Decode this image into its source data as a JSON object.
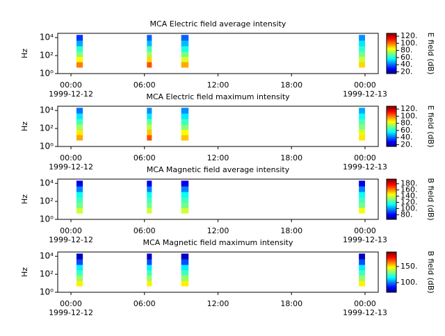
{
  "chart_data": [
    {
      "type": "spectrogram",
      "title": "MCA  Electric field average intensity",
      "ylabel": "Hz",
      "yscale": "log",
      "ylim": [
        1,
        30000
      ],
      "yticks": [
        {
          "value": 1,
          "label": "10⁰"
        },
        {
          "value": 100,
          "label": "10²"
        },
        {
          "value": 10000,
          "label": "10⁴"
        }
      ],
      "xlim": [
        -1.08,
        25.08
      ],
      "xticks": [
        {
          "value": 0,
          "label": "00:00"
        },
        {
          "value": 6,
          "label": "06:00"
        },
        {
          "value": 12,
          "label": "12:00"
        },
        {
          "value": 18,
          "label": "18:00"
        },
        {
          "value": 24,
          "label": "00:00"
        }
      ],
      "xdates": [
        {
          "value": 0,
          "label": "1999-12-12"
        },
        {
          "value": 24,
          "label": "1999-12-13"
        }
      ],
      "bins": [
        5,
        20,
        80,
        300,
        1200,
        5000,
        20000
      ],
      "bursts": [
        {
          "start": 0.45,
          "end": 0.97,
          "values": [
            100,
            85,
            72,
            62,
            48,
            35
          ]
        },
        {
          "start": 6.2,
          "end": 6.6,
          "values": [
            105,
            90,
            75,
            65,
            50,
            40
          ]
        },
        {
          "start": 9.0,
          "end": 9.6,
          "values": [
            95,
            82,
            70,
            60,
            50,
            40
          ]
        },
        {
          "start": 23.5,
          "end": 24.0,
          "values": [
            90,
            80,
            70,
            62,
            55,
            45
          ]
        }
      ],
      "zlim": [
        15,
        128
      ],
      "zlabel": "E field (dB)",
      "zticks": [
        {
          "value": 20,
          "label": "20."
        },
        {
          "value": 40,
          "label": "40."
        },
        {
          "value": 60,
          "label": "60."
        },
        {
          "value": 80,
          "label": "80."
        },
        {
          "value": 100,
          "label": "100."
        },
        {
          "value": 120,
          "label": "120."
        }
      ]
    },
    {
      "type": "spectrogram",
      "title": "MCA  Electric field maximum intensity",
      "ylabel": "Hz",
      "yscale": "log",
      "ylim": [
        1,
        30000
      ],
      "yticks": [
        {
          "value": 1,
          "label": "10⁰"
        },
        {
          "value": 100,
          "label": "10²"
        },
        {
          "value": 10000,
          "label": "10⁴"
        }
      ],
      "xlim": [
        -1.08,
        25.08
      ],
      "xticks": [
        {
          "value": 0,
          "label": "00:00"
        },
        {
          "value": 6,
          "label": "06:00"
        },
        {
          "value": 12,
          "label": "12:00"
        },
        {
          "value": 18,
          "label": "18:00"
        },
        {
          "value": 24,
          "label": "00:00"
        }
      ],
      "xdates": [
        {
          "value": 0,
          "label": "1999-12-12"
        },
        {
          "value": 24,
          "label": "1999-12-13"
        }
      ],
      "bins": [
        5,
        20,
        80,
        300,
        1200,
        5000,
        20000
      ],
      "bursts": [
        {
          "start": 0.45,
          "end": 0.97,
          "values": [
            95,
            88,
            75,
            65,
            55,
            42
          ]
        },
        {
          "start": 6.2,
          "end": 6.6,
          "values": [
            105,
            92,
            78,
            68,
            55,
            45
          ]
        },
        {
          "start": 9.0,
          "end": 9.6,
          "values": [
            92,
            85,
            72,
            64,
            55,
            45
          ]
        },
        {
          "start": 23.5,
          "end": 24.0,
          "values": [
            88,
            82,
            72,
            66,
            58,
            48
          ]
        }
      ],
      "zlim": [
        15,
        128
      ],
      "zlabel": "E field (dB)",
      "zticks": [
        {
          "value": 20,
          "label": "20."
        },
        {
          "value": 40,
          "label": "40."
        },
        {
          "value": 60,
          "label": "60."
        },
        {
          "value": 80,
          "label": "80."
        },
        {
          "value": 100,
          "label": "100."
        },
        {
          "value": 120,
          "label": "120."
        }
      ]
    },
    {
      "type": "spectrogram",
      "title": "MCA  Magnetic field average intensity",
      "ylabel": "Hz",
      "yscale": "log",
      "ylim": [
        1,
        30000
      ],
      "yticks": [
        {
          "value": 1,
          "label": "10⁰"
        },
        {
          "value": 100,
          "label": "10²"
        },
        {
          "value": 10000,
          "label": "10⁴"
        }
      ],
      "xlim": [
        -1.08,
        25.08
      ],
      "xticks": [
        {
          "value": 0,
          "label": "00:00"
        },
        {
          "value": 6,
          "label": "06:00"
        },
        {
          "value": 12,
          "label": "12:00"
        },
        {
          "value": 18,
          "label": "18:00"
        },
        {
          "value": 24,
          "label": "00:00"
        }
      ],
      "xdates": [
        {
          "value": 0,
          "label": "1999-12-12"
        },
        {
          "value": 24,
          "label": "1999-12-13"
        }
      ],
      "bins": [
        5,
        20,
        80,
        300,
        1200,
        5000,
        20000
      ],
      "bursts": [
        {
          "start": 0.45,
          "end": 0.97,
          "values": [
            140,
            128,
            122,
            115,
            98,
            78
          ]
        },
        {
          "start": 6.2,
          "end": 6.6,
          "values": [
            140,
            128,
            122,
            115,
            98,
            78
          ]
        },
        {
          "start": 9.0,
          "end": 9.6,
          "values": [
            140,
            128,
            122,
            115,
            98,
            78
          ]
        },
        {
          "start": 23.5,
          "end": 24.0,
          "values": [
            145,
            128,
            122,
            115,
            98,
            78
          ]
        }
      ],
      "zlim": [
        65,
        195
      ],
      "zlabel": "B field (dB)",
      "zticks": [
        {
          "value": 80,
          "label": "80."
        },
        {
          "value": 100,
          "label": "100."
        },
        {
          "value": 120,
          "label": "120."
        },
        {
          "value": 140,
          "label": "140."
        },
        {
          "value": 160,
          "label": "160."
        },
        {
          "value": 180,
          "label": "180."
        }
      ]
    },
    {
      "type": "spectrogram",
      "title": "MCA  Magnetic field maximum intensity",
      "ylabel": "Hz",
      "yscale": "log",
      "ylim": [
        1,
        30000
      ],
      "yticks": [
        {
          "value": 1,
          "label": "10⁰"
        },
        {
          "value": 100,
          "label": "10²"
        },
        {
          "value": 10000,
          "label": "10⁴"
        }
      ],
      "xlim": [
        -1.08,
        25.08
      ],
      "xticks": [
        {
          "value": 0,
          "label": "00:00"
        },
        {
          "value": 6,
          "label": "06:00"
        },
        {
          "value": 12,
          "label": "12:00"
        },
        {
          "value": 18,
          "label": "18:00"
        },
        {
          "value": 24,
          "label": "00:00"
        }
      ],
      "xdates": [
        {
          "value": 0,
          "label": "1999-12-12"
        },
        {
          "value": 24,
          "label": "1999-12-13"
        }
      ],
      "bins": [
        5,
        20,
        80,
        300,
        1200,
        5000,
        20000
      ],
      "bursts": [
        {
          "start": 0.45,
          "end": 0.97,
          "values": [
            150,
            135,
            125,
            115,
            95,
            78
          ]
        },
        {
          "start": 6.2,
          "end": 6.6,
          "values": [
            150,
            135,
            125,
            115,
            95,
            78
          ]
        },
        {
          "start": 9.0,
          "end": 9.6,
          "values": [
            150,
            135,
            125,
            115,
            95,
            78
          ]
        },
        {
          "start": 23.5,
          "end": 24.0,
          "values": [
            150,
            135,
            125,
            115,
            95,
            78
          ]
        }
      ],
      "zlim": [
        70,
        195
      ],
      "zlabel": "B field (dB)",
      "zticks": [
        {
          "value": 100,
          "label": "100."
        },
        {
          "value": 150,
          "label": "150."
        }
      ]
    }
  ]
}
